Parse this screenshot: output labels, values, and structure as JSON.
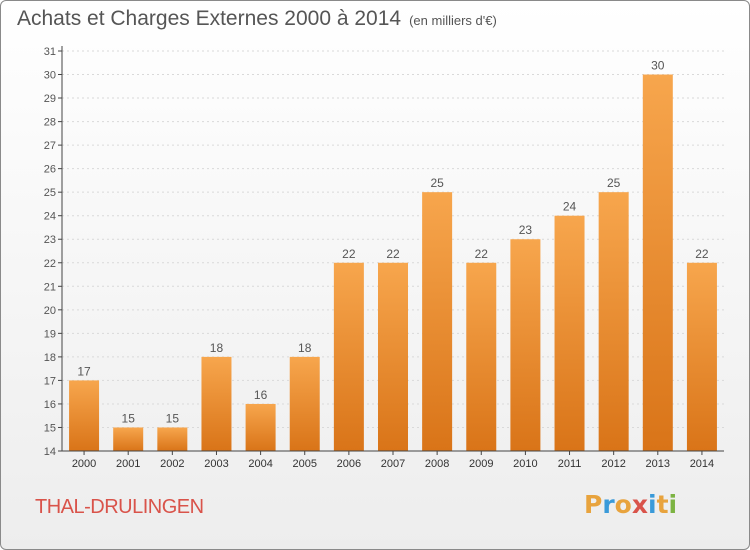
{
  "header": {
    "title": "Achats et Charges Externes 2000 à 2014",
    "unit": "(en milliers d'€)"
  },
  "footer": {
    "place": "THAL-DRULINGEN",
    "brand": [
      "P",
      "r",
      "o",
      "x",
      "i",
      "t",
      "i"
    ],
    "brand_colors": [
      "#e8a33d",
      "#3a9ad9",
      "#e8a33d",
      "#d9534a",
      "#3a9ad9",
      "#e8a33d",
      "#7cb342"
    ]
  },
  "colors": {
    "bar_top": "#f7a64d",
    "bar_bottom": "#d97418",
    "axis": "#444444",
    "text": "#555555",
    "grid": "#d9d9d9"
  },
  "chart_data": {
    "type": "bar",
    "categories": [
      "2000",
      "2001",
      "2002",
      "2003",
      "2004",
      "2005",
      "2006",
      "2007",
      "2008",
      "2009",
      "2010",
      "2011",
      "2012",
      "2013",
      "2014"
    ],
    "values": [
      17,
      15,
      15,
      18,
      16,
      18,
      22,
      22,
      25,
      22,
      23,
      24,
      25,
      30,
      22
    ],
    "ylim": [
      14,
      31
    ],
    "yticks": [
      14,
      15,
      16,
      17,
      18,
      19,
      20,
      21,
      22,
      23,
      24,
      25,
      26,
      27,
      28,
      29,
      30,
      31
    ],
    "data_labels": true,
    "grid": true,
    "xlabel": "",
    "ylabel": ""
  }
}
